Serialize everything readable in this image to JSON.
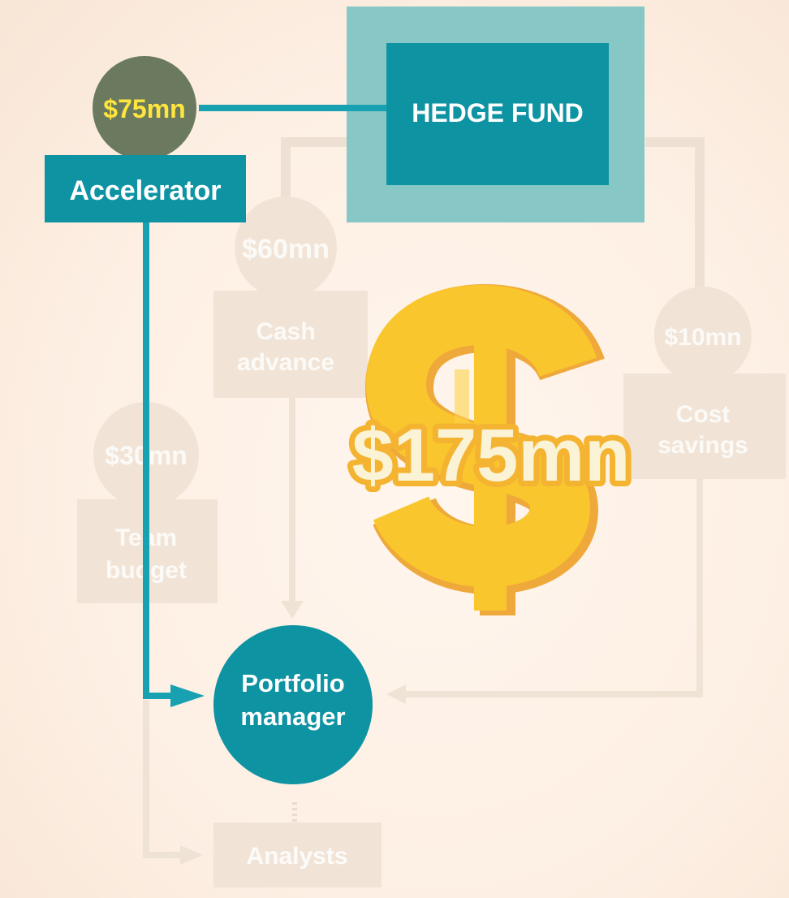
{
  "colors": {
    "background": "#fdf0e5",
    "teal": "#0e93a3",
    "teal_light": "#87c8c7",
    "teal_line": "#18a2b1",
    "amount_circle": "#6b7a5e",
    "amount_text": "#ffe53d",
    "dollar_gold": "#f9c62d",
    "dollar_shadow": "#efa93a",
    "faded_shape": "#f0e2d4",
    "faded_text": "#ffffff"
  },
  "hedge_fund": {
    "label": "HEDGE FUND"
  },
  "accelerator": {
    "amount": "$75mn",
    "label": "Accelerator"
  },
  "cash_advance": {
    "amount": "$60mn",
    "label_line1": "Cash",
    "label_line2": "advance"
  },
  "cost_savings": {
    "amount": "$10mn",
    "label_line1": "Cost",
    "label_line2": "savings"
  },
  "team_budget": {
    "amount": "$30mn",
    "label_line1": "Team",
    "label_line2": "budget"
  },
  "total": {
    "icon": "dollar-sign-icon",
    "amount": "$175mn"
  },
  "portfolio_manager": {
    "label_line1": "Portfolio",
    "label_line2": "manager"
  },
  "analysts": {
    "label": "Analysts"
  }
}
